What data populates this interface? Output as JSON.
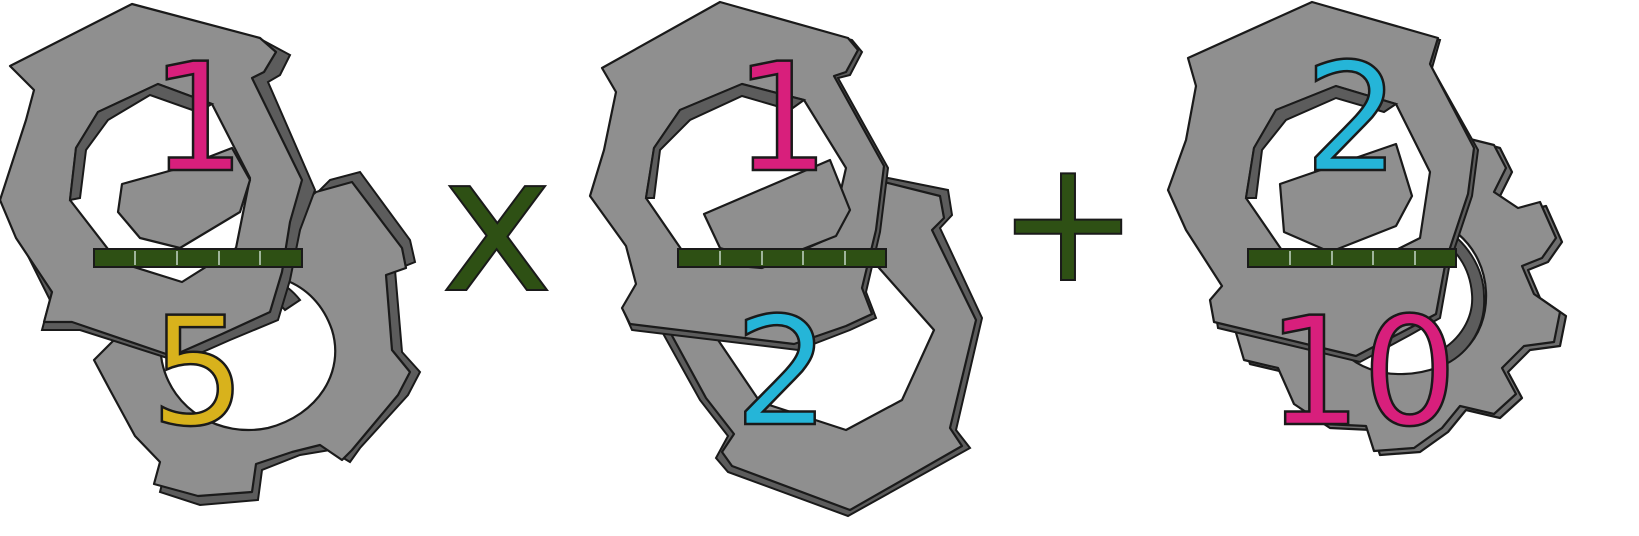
{
  "expression": {
    "terms": [
      {
        "numerator": "1",
        "denominator": "5"
      },
      {
        "numerator": "1",
        "denominator": "2"
      },
      {
        "numerator": "2",
        "denominator": "10"
      }
    ],
    "operators": [
      "x",
      "+"
    ]
  },
  "colors": {
    "numerator_1": "#d81f7c",
    "denominator_1": "#d8b21c",
    "numerator_2": "#d81f7c",
    "denominator_2": "#25b5d8",
    "numerator_3": "#25b5d8",
    "denominator_3": "#d81f7c",
    "bar": "#2e5014",
    "operator": "#2e5014",
    "gear": "#8f8f8f"
  }
}
